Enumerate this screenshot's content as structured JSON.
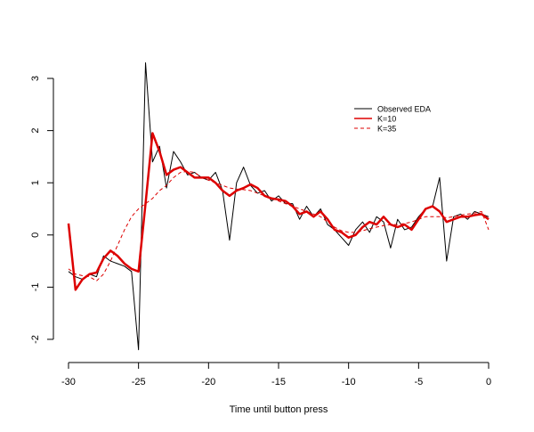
{
  "chart_data": {
    "type": "line",
    "xlabel": "Time until button press",
    "x": [
      -30,
      -29.5,
      -29,
      -28.5,
      -28,
      -27.5,
      -27,
      -26.5,
      -26,
      -25.5,
      -25,
      -24.5,
      -24,
      -23.5,
      -23,
      -22.5,
      -22,
      -21.5,
      -21,
      -20.5,
      -20,
      -19.5,
      -19,
      -18.5,
      -18,
      -17.5,
      -17,
      -16.5,
      -16,
      -15.5,
      -15,
      -14.5,
      -14,
      -13.5,
      -13,
      -12.5,
      -12,
      -11.5,
      -11,
      -10.5,
      -10,
      -9.5,
      -9,
      -8.5,
      -8,
      -7.5,
      -7,
      -6.5,
      -6,
      -5.5,
      -5,
      -4.5,
      -4,
      -3.5,
      -3,
      -2.5,
      -2,
      -1.5,
      -1,
      -0.5,
      0
    ],
    "series": [
      {
        "name": "Observed EDA",
        "color": "#000000",
        "line_style": "solid",
        "line_width": 1,
        "values": [
          -0.7,
          -0.8,
          -0.85,
          -0.75,
          -0.8,
          -0.4,
          -0.5,
          -0.55,
          -0.6,
          -0.7,
          -2.2,
          3.3,
          1.4,
          1.7,
          0.9,
          1.6,
          1.4,
          1.15,
          1.2,
          1.1,
          1.05,
          1.2,
          0.85,
          -0.1,
          1.0,
          1.3,
          0.95,
          0.8,
          0.85,
          0.65,
          0.75,
          0.6,
          0.6,
          0.3,
          0.55,
          0.35,
          0.5,
          0.2,
          0.1,
          -0.05,
          -0.2,
          0.1,
          0.25,
          0.05,
          0.35,
          0.25,
          -0.25,
          0.3,
          0.1,
          0.15,
          0.35,
          0.5,
          0.55,
          1.1,
          -0.5,
          0.35,
          0.4,
          0.3,
          0.45,
          0.4,
          0.35
        ]
      },
      {
        "name": "K=10",
        "color": "#dd0000",
        "line_style": "solid",
        "line_width": 2.5,
        "values": [
          0.22,
          -1.05,
          -0.85,
          -0.75,
          -0.72,
          -0.45,
          -0.3,
          -0.4,
          -0.55,
          -0.65,
          -0.7,
          0.6,
          1.95,
          1.6,
          1.15,
          1.25,
          1.3,
          1.2,
          1.1,
          1.1,
          1.1,
          1.0,
          0.85,
          0.75,
          0.85,
          0.9,
          0.97,
          0.9,
          0.75,
          0.7,
          0.68,
          0.65,
          0.55,
          0.4,
          0.45,
          0.35,
          0.45,
          0.3,
          0.1,
          0.05,
          -0.05,
          0.0,
          0.15,
          0.25,
          0.2,
          0.35,
          0.2,
          0.15,
          0.2,
          0.1,
          0.3,
          0.5,
          0.55,
          0.45,
          0.25,
          0.3,
          0.35,
          0.35,
          0.38,
          0.4,
          0.3
        ]
      },
      {
        "name": "K=35",
        "color": "#dd0000",
        "line_style": "dashed",
        "line_width": 1,
        "values": [
          -0.65,
          -0.75,
          -0.78,
          -0.8,
          -0.88,
          -0.75,
          -0.5,
          -0.2,
          0.1,
          0.35,
          0.5,
          0.6,
          0.7,
          0.85,
          0.95,
          1.1,
          1.2,
          1.22,
          1.2,
          1.1,
          1.05,
          1.0,
          0.95,
          0.9,
          0.88,
          0.87,
          0.85,
          0.8,
          0.75,
          0.7,
          0.65,
          0.6,
          0.55,
          0.5,
          0.45,
          0.4,
          0.35,
          0.25,
          0.15,
          0.08,
          0.05,
          0.05,
          0.08,
          0.12,
          0.15,
          0.18,
          0.2,
          0.2,
          0.22,
          0.25,
          0.3,
          0.35,
          0.35,
          0.35,
          0.33,
          0.35,
          0.38,
          0.4,
          0.42,
          0.45,
          0.1
        ]
      }
    ],
    "xlim": [
      -31.2,
      1.2
    ],
    "ylim": [
      -2.4,
      3.4
    ],
    "xticks": [
      -30,
      -25,
      -20,
      -15,
      -10,
      -5,
      0
    ],
    "yticks": [
      -2,
      -1,
      0,
      1,
      2,
      3
    ],
    "legend_position": "top-right"
  }
}
